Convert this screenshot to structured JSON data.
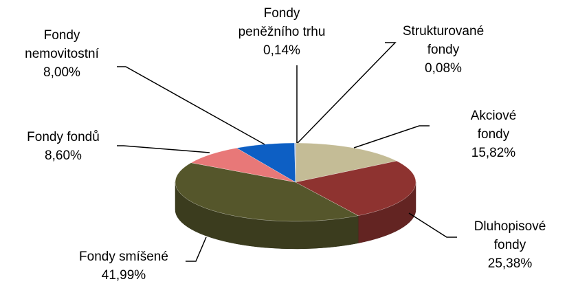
{
  "chart_data": {
    "type": "pie3d",
    "categories": [
      "Strukturované\nfondy",
      "Akciové fondy",
      "Dluhopisové\nfondy",
      "Fondy smíšené",
      "Fondy fondů",
      "Fondy\nnemovitostní",
      "Fondy\npeněžního trhu"
    ],
    "values": [
      0.08,
      15.82,
      25.38,
      41.99,
      8.6,
      8.0,
      0.14
    ],
    "value_labels": [
      "0,08%",
      "15,82%",
      "25,38%",
      "41,99%",
      "8,60%",
      "8,00%",
      "0,14%"
    ],
    "colors": [
      "#9e9e9e",
      "#c4bc96",
      "#8e3330",
      "#55562b",
      "#e87878",
      "#0d5fc4",
      "#8ea9db"
    ]
  }
}
